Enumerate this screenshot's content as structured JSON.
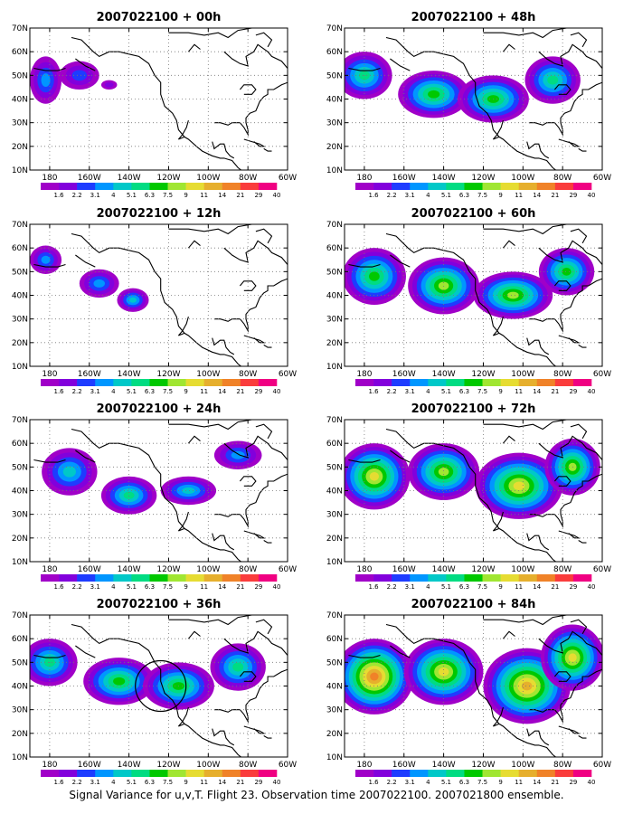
{
  "caption": "Signal Variance for u,v,T. Flight 23. Observation time 2007022100. 2007021800 ensemble.",
  "axes": {
    "lat_labels": [
      "10N",
      "20N",
      "30N",
      "40N",
      "50N",
      "60N",
      "70N"
    ],
    "lon_labels": [
      "180",
      "160W",
      "140W",
      "120W",
      "100W",
      "80W",
      "60W"
    ]
  },
  "colorbar": {
    "labels": [
      "1.6",
      "2.2",
      "3.1",
      "4",
      "5.1",
      "6.3",
      "7.5",
      "9",
      "11",
      "14",
      "21",
      "29",
      "40"
    ],
    "colors": [
      "#a000c8",
      "#8200dc",
      "#1e3cff",
      "#0096ff",
      "#00c8c8",
      "#00dc82",
      "#00c800",
      "#a0e632",
      "#e6dc32",
      "#e6af2d",
      "#f08228",
      "#fa3c3c",
      "#f00082"
    ]
  },
  "panels": [
    {
      "title": "2007022100 + 00h",
      "level": 0
    },
    {
      "title": "2007022100 + 48h",
      "level": 3
    },
    {
      "title": "2007022100 + 12h",
      "level": 1
    },
    {
      "title": "2007022100 + 60h",
      "level": 4
    },
    {
      "title": "2007022100 + 24h",
      "level": 2
    },
    {
      "title": "2007022100 + 72h",
      "level": 5
    },
    {
      "title": "2007022100 + 36h",
      "level": 3
    },
    {
      "title": "2007022100 + 84h",
      "level": 6
    }
  ]
}
